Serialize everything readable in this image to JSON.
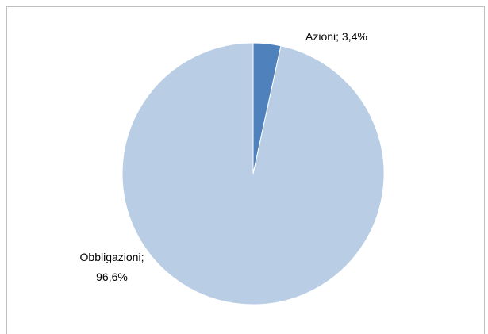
{
  "chart_data": {
    "type": "pie",
    "values": [
      3.4,
      96.6
    ],
    "value_labels": [
      "Azioni; 3,4%",
      "Obbligazioni;\n96,6%"
    ],
    "colors": [
      "#4f81bd",
      "#b9cde5"
    ]
  }
}
